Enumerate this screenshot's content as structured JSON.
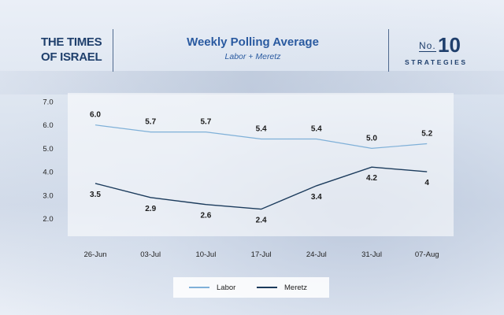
{
  "header": {
    "logo_line1": "THE TIMES",
    "logo_line2": "OF ISRAEL",
    "badge_no": "No.",
    "badge_number": "10",
    "badge_word": "STRATEGIES"
  },
  "colors": {
    "labor": "#7fb0d8",
    "meretz": "#1b3b5c",
    "title": "#2a5aa0",
    "brand": "#1f3f6c"
  },
  "chart_data": {
    "type": "line",
    "title": "Weekly Polling Average",
    "subtitle": "Labor + Meretz",
    "categories": [
      "26-Jun",
      "03-Jul",
      "10-Jul",
      "17-Jul",
      "24-Jul",
      "31-Jul",
      "07-Aug"
    ],
    "y_ticks": [
      "7.0",
      "6.0",
      "5.0",
      "4.0",
      "3.0",
      "2.0"
    ],
    "ylim": [
      2.0,
      7.0
    ],
    "series": [
      {
        "name": "Labor",
        "values": [
          6.0,
          5.7,
          5.7,
          5.4,
          5.4,
          5.0,
          5.2
        ],
        "labels": [
          "6.0",
          "5.7",
          "5.7",
          "5.4",
          "5.4",
          "5.0",
          "5.2"
        ]
      },
      {
        "name": "Meretz",
        "values": [
          3.5,
          2.9,
          2.6,
          2.4,
          3.4,
          4.2,
          4.0
        ],
        "labels": [
          "3.5",
          "2.9",
          "2.6",
          "2.4",
          "3.4",
          "4.2",
          "4"
        ]
      }
    ],
    "legend_position": "bottom",
    "grid": false
  }
}
